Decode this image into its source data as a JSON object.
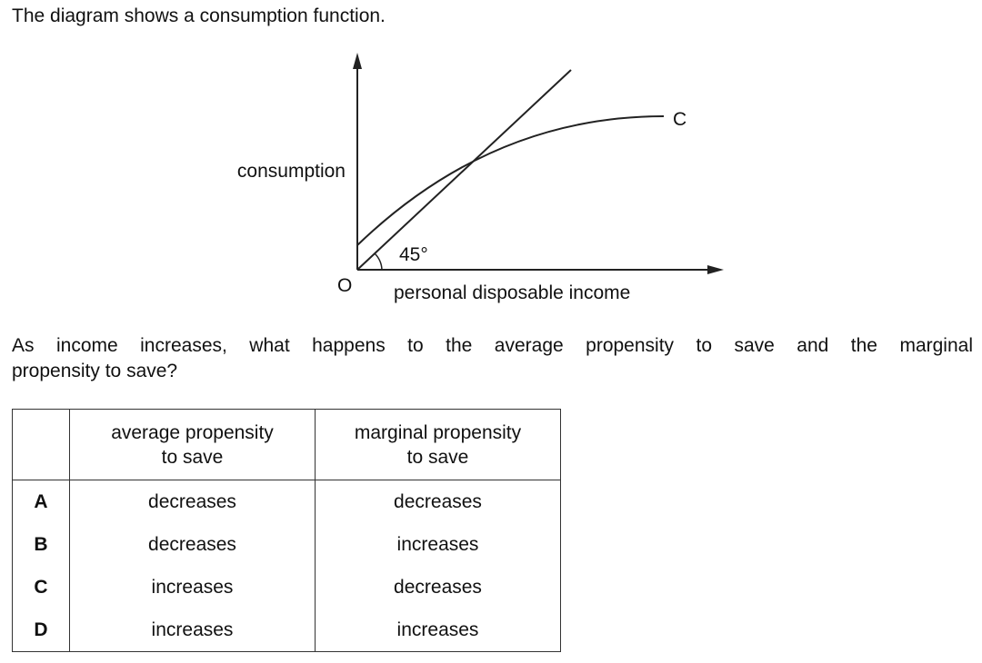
{
  "intro": "The diagram shows a consumption function.",
  "diagram": {
    "y_axis_label": "consumption",
    "x_axis_label": "personal disposable income",
    "origin_label": "O",
    "angle_label": "45°",
    "curve_label": "C"
  },
  "question": [
    "As income increases, what happens to the average propensity to save and the marginal",
    "propensity to save?"
  ],
  "table": {
    "header": [
      [
        "average propensity",
        "to save"
      ],
      [
        "marginal propensity",
        "to save"
      ]
    ],
    "rows": [
      [
        "A",
        "decreases",
        "decreases"
      ],
      [
        "B",
        "decreases",
        "increases"
      ],
      [
        "C",
        "increases",
        "decreases"
      ],
      [
        "D",
        "increases",
        "increases"
      ]
    ]
  }
}
